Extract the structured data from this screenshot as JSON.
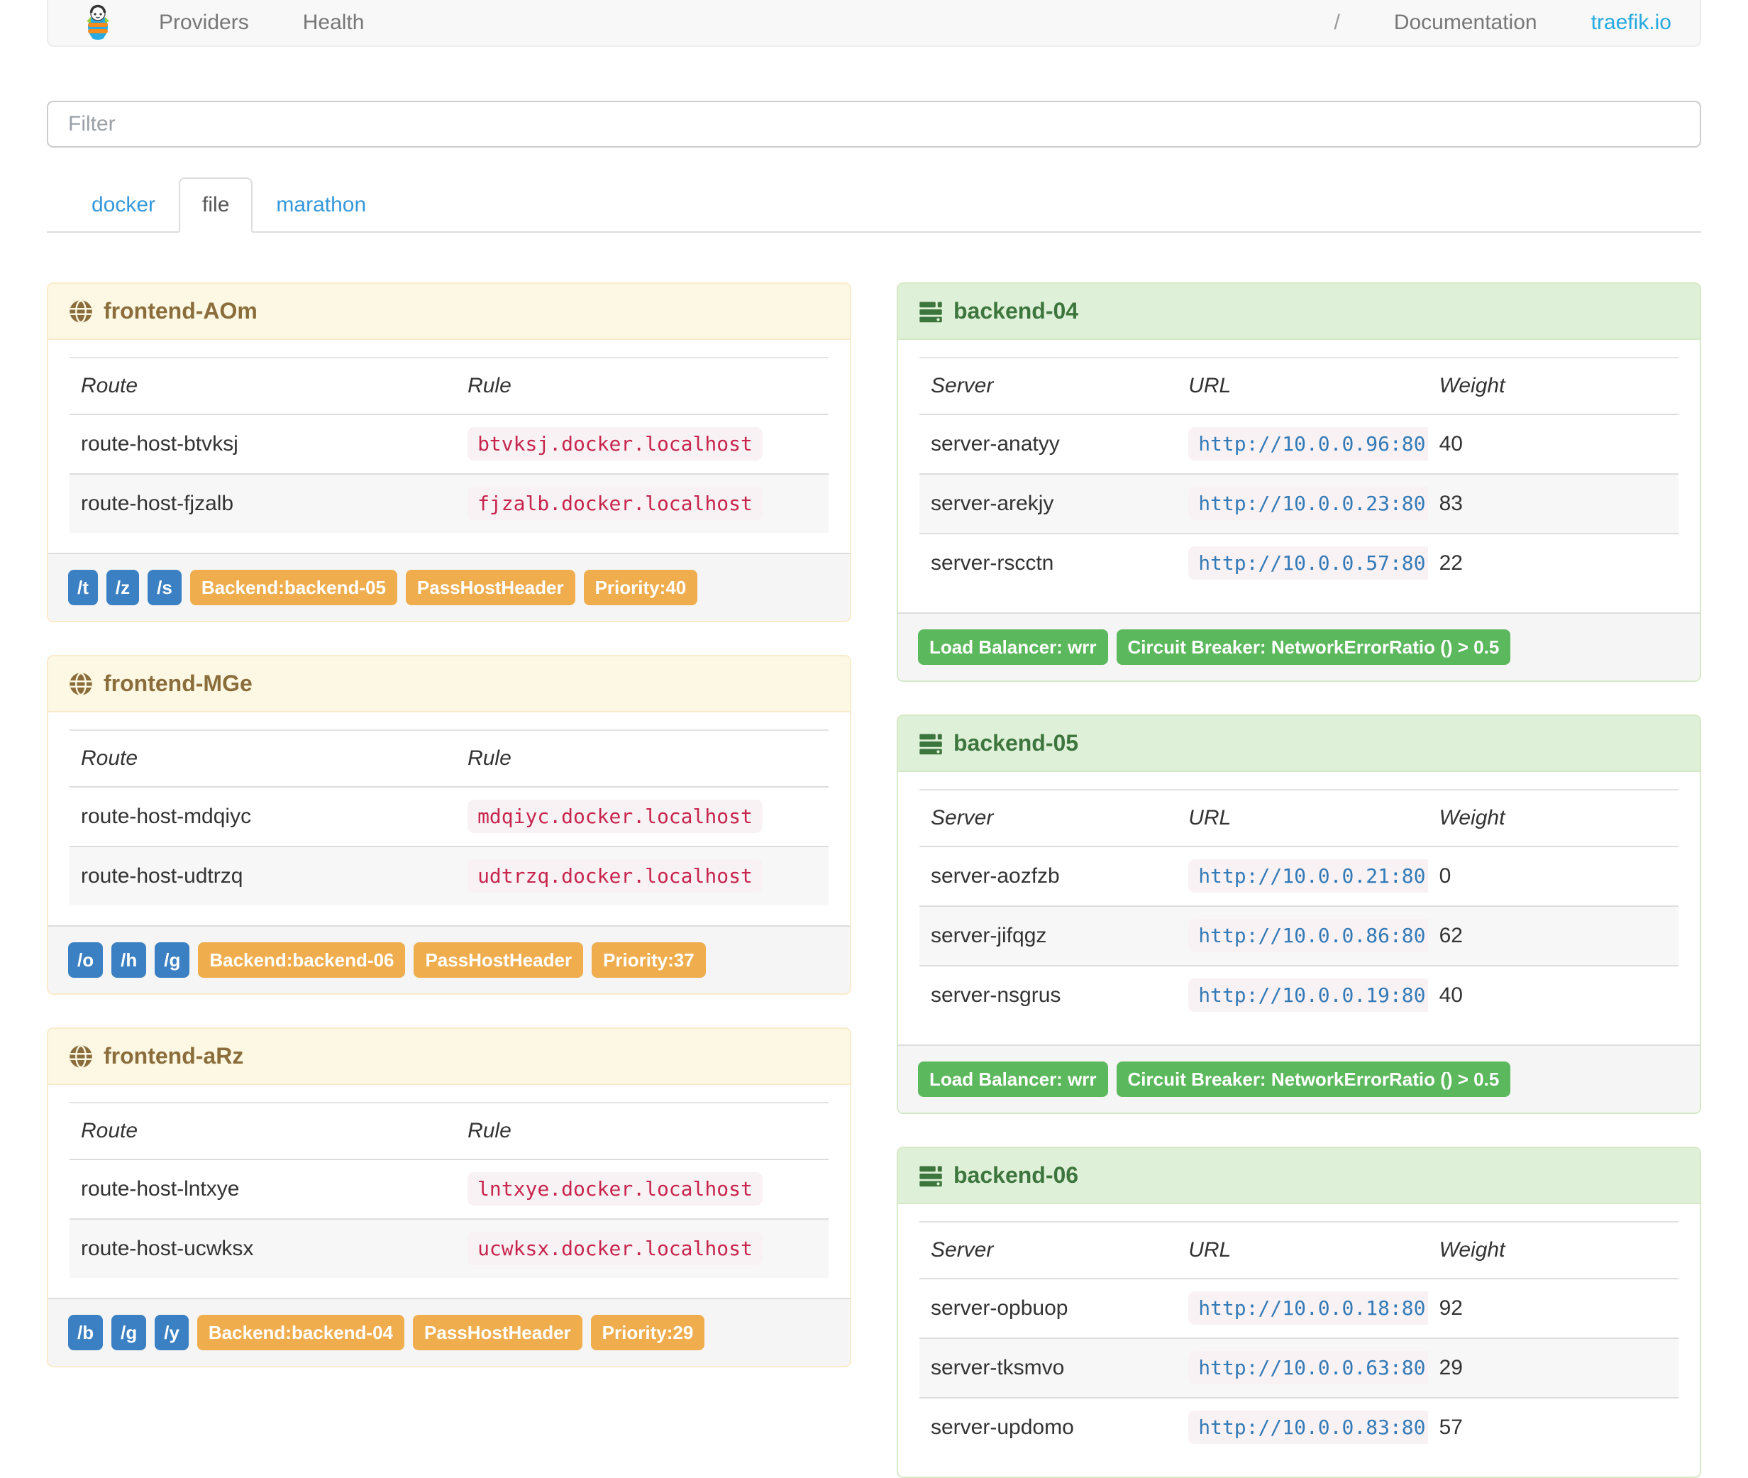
{
  "navbar": {
    "brand_icon": "traefik-logo-icon",
    "links": [
      {
        "id": "providers",
        "label": "Providers"
      },
      {
        "id": "health",
        "label": "Health"
      }
    ],
    "right_links": [
      {
        "id": "slash",
        "label": "/"
      },
      {
        "id": "documentation",
        "label": "Documentation"
      },
      {
        "id": "traefik-io",
        "label": "traefik.io"
      }
    ]
  },
  "filter": {
    "placeholder": "Filter",
    "value": ""
  },
  "tabs": [
    {
      "id": "docker",
      "label": "docker",
      "active": false
    },
    {
      "id": "file",
      "label": "file",
      "active": true
    },
    {
      "id": "marathon",
      "label": "marathon",
      "active": false
    }
  ],
  "icons": {
    "frontend": "globe-icon",
    "backend": "server-icon"
  },
  "frontends": [
    {
      "title": "frontend-AOm",
      "columns": [
        "Route",
        "Rule"
      ],
      "rows": [
        [
          "route-host-btvksj",
          "btvksj.docker.localhost"
        ],
        [
          "route-host-fjzalb",
          "fjzalb.docker.localhost"
        ]
      ],
      "route_tags": [
        "/t",
        "/z",
        "/s"
      ],
      "tags": [
        "Backend:backend-05",
        "PassHostHeader",
        "Priority:40"
      ]
    },
    {
      "title": "frontend-MGe",
      "columns": [
        "Route",
        "Rule"
      ],
      "rows": [
        [
          "route-host-mdqiyc",
          "mdqiyc.docker.localhost"
        ],
        [
          "route-host-udtrzq",
          "udtrzq.docker.localhost"
        ]
      ],
      "route_tags": [
        "/o",
        "/h",
        "/g"
      ],
      "tags": [
        "Backend:backend-06",
        "PassHostHeader",
        "Priority:37"
      ]
    },
    {
      "title": "frontend-aRz",
      "columns": [
        "Route",
        "Rule"
      ],
      "rows": [
        [
          "route-host-lntxye",
          "lntxye.docker.localhost"
        ],
        [
          "route-host-ucwksx",
          "ucwksx.docker.localhost"
        ]
      ],
      "route_tags": [
        "/b",
        "/g",
        "/y"
      ],
      "tags": [
        "Backend:backend-04",
        "PassHostHeader",
        "Priority:29"
      ]
    }
  ],
  "backends": [
    {
      "title": "backend-04",
      "columns": [
        "Server",
        "URL",
        "Weight"
      ],
      "rows": [
        [
          "server-anatyy",
          "http://10.0.0.96:80",
          "40"
        ],
        [
          "server-arekjy",
          "http://10.0.0.23:80",
          "83"
        ],
        [
          "server-rscctn",
          "http://10.0.0.57:80",
          "22"
        ]
      ],
      "tags": [
        "Load Balancer: wrr",
        "Circuit Breaker: NetworkErrorRatio () > 0.5"
      ]
    },
    {
      "title": "backend-05",
      "columns": [
        "Server",
        "URL",
        "Weight"
      ],
      "rows": [
        [
          "server-aozfzb",
          "http://10.0.0.21:80",
          "0"
        ],
        [
          "server-jifqgz",
          "http://10.0.0.86:80",
          "62"
        ],
        [
          "server-nsgrus",
          "http://10.0.0.19:80",
          "40"
        ]
      ],
      "tags": [
        "Load Balancer: wrr",
        "Circuit Breaker: NetworkErrorRatio () > 0.5"
      ]
    },
    {
      "title": "backend-06",
      "columns": [
        "Server",
        "URL",
        "Weight"
      ],
      "rows": [
        [
          "server-opbuop",
          "http://10.0.0.18:80",
          "92"
        ],
        [
          "server-tksmvo",
          "http://10.0.0.63:80",
          "29"
        ],
        [
          "server-updomo",
          "http://10.0.0.83:80",
          "57"
        ]
      ],
      "tags": []
    }
  ],
  "colors": {
    "accent_link": "#24a9e0",
    "tab_link": "#3498db",
    "warning_bg": "#fcf8e3",
    "warning_border": "#faebcc",
    "warning_text": "#8a6d3b",
    "success_bg": "#dff0d8",
    "success_border": "#d6e9c6",
    "success_text": "#3c763d",
    "label_primary": "#3a80c2",
    "label_warning": "#f0ad4e",
    "label_success": "#5cb85c",
    "code_rule": "#c7254e",
    "code_url": "#337ab7",
    "code_bg": "#f9f2f4"
  }
}
